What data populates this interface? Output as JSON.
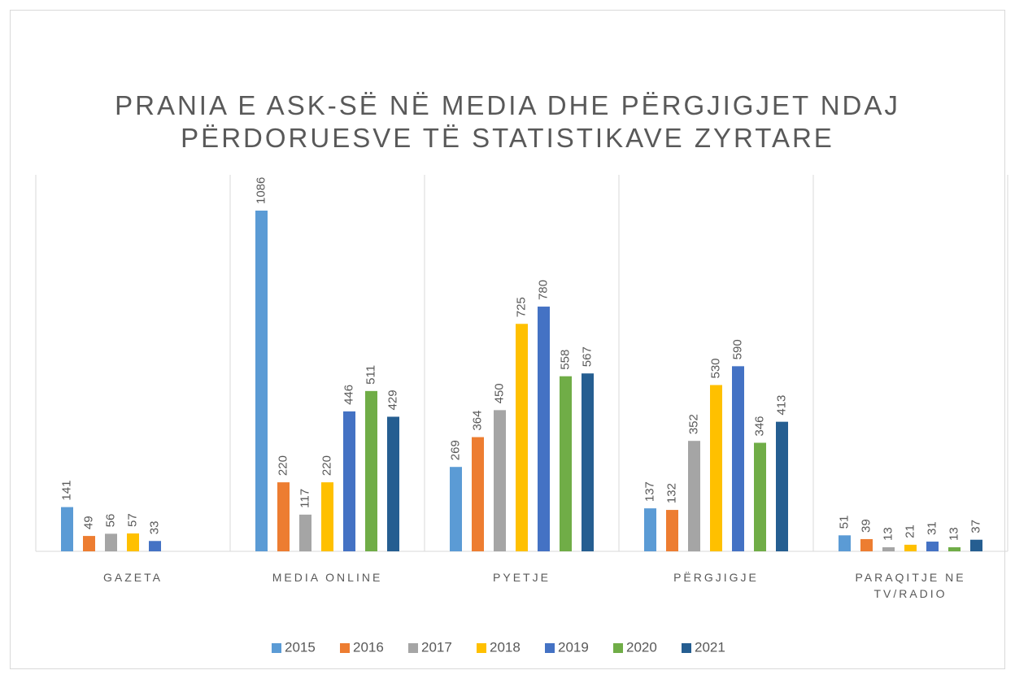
{
  "chart_data": {
    "type": "bar",
    "title": "PRANIA E ASK-SË NË MEDIA DHE PËRGJIGJET NDAJ PËRDORUESVE TË STATISTIKAVE ZYRTARE",
    "categories": [
      "GAZETA",
      "MEDIA ONLINE",
      "PYETJE",
      "PËRGJIGJE",
      "PARAQITJE NE TV/RADIO"
    ],
    "series": [
      {
        "name": "2015",
        "color": "#5b9bd5",
        "values": [
          141,
          1086,
          269,
          137,
          51
        ]
      },
      {
        "name": "2016",
        "color": "#ed7d31",
        "values": [
          49,
          220,
          364,
          132,
          39
        ]
      },
      {
        "name": "2017",
        "color": "#a5a5a5",
        "values": [
          56,
          117,
          450,
          352,
          13
        ]
      },
      {
        "name": "2018",
        "color": "#ffc000",
        "values": [
          57,
          220,
          725,
          530,
          21
        ]
      },
      {
        "name": "2019",
        "color": "#4472c4",
        "values": [
          33,
          446,
          780,
          590,
          31
        ]
      },
      {
        "name": "2020",
        "color": "#70ad47",
        "values": [
          null,
          511,
          558,
          346,
          13
        ]
      },
      {
        "name": "2021",
        "color": "#255e91",
        "values": [
          null,
          429,
          567,
          413,
          37
        ]
      }
    ],
    "ylim": [
      0,
      1200
    ],
    "legend": "bottom"
  }
}
